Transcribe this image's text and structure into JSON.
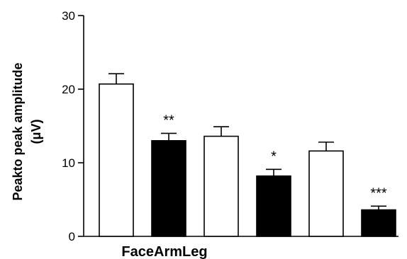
{
  "chart_data": {
    "type": "bar",
    "title": "",
    "xlabel": "FaceArmLeg",
    "ylabel_line1": "Peakto peak amplitude",
    "ylabel_line2": "(μV)",
    "ylim": [
      0,
      30
    ],
    "yticks": [
      0,
      10,
      20,
      30
    ],
    "grid": false,
    "legend": "none",
    "bars": [
      {
        "value": 20.7,
        "error": 1.4,
        "fill": "#ffffff",
        "sig": ""
      },
      {
        "value": 13.0,
        "error": 1.0,
        "fill": "#000000",
        "sig": "**"
      },
      {
        "value": 13.6,
        "error": 1.3,
        "fill": "#ffffff",
        "sig": ""
      },
      {
        "value": 8.2,
        "error": 0.9,
        "fill": "#000000",
        "sig": "*"
      },
      {
        "value": 11.6,
        "error": 1.2,
        "fill": "#ffffff",
        "sig": ""
      },
      {
        "value": 3.6,
        "error": 0.5,
        "fill": "#000000",
        "sig": "***"
      }
    ]
  }
}
